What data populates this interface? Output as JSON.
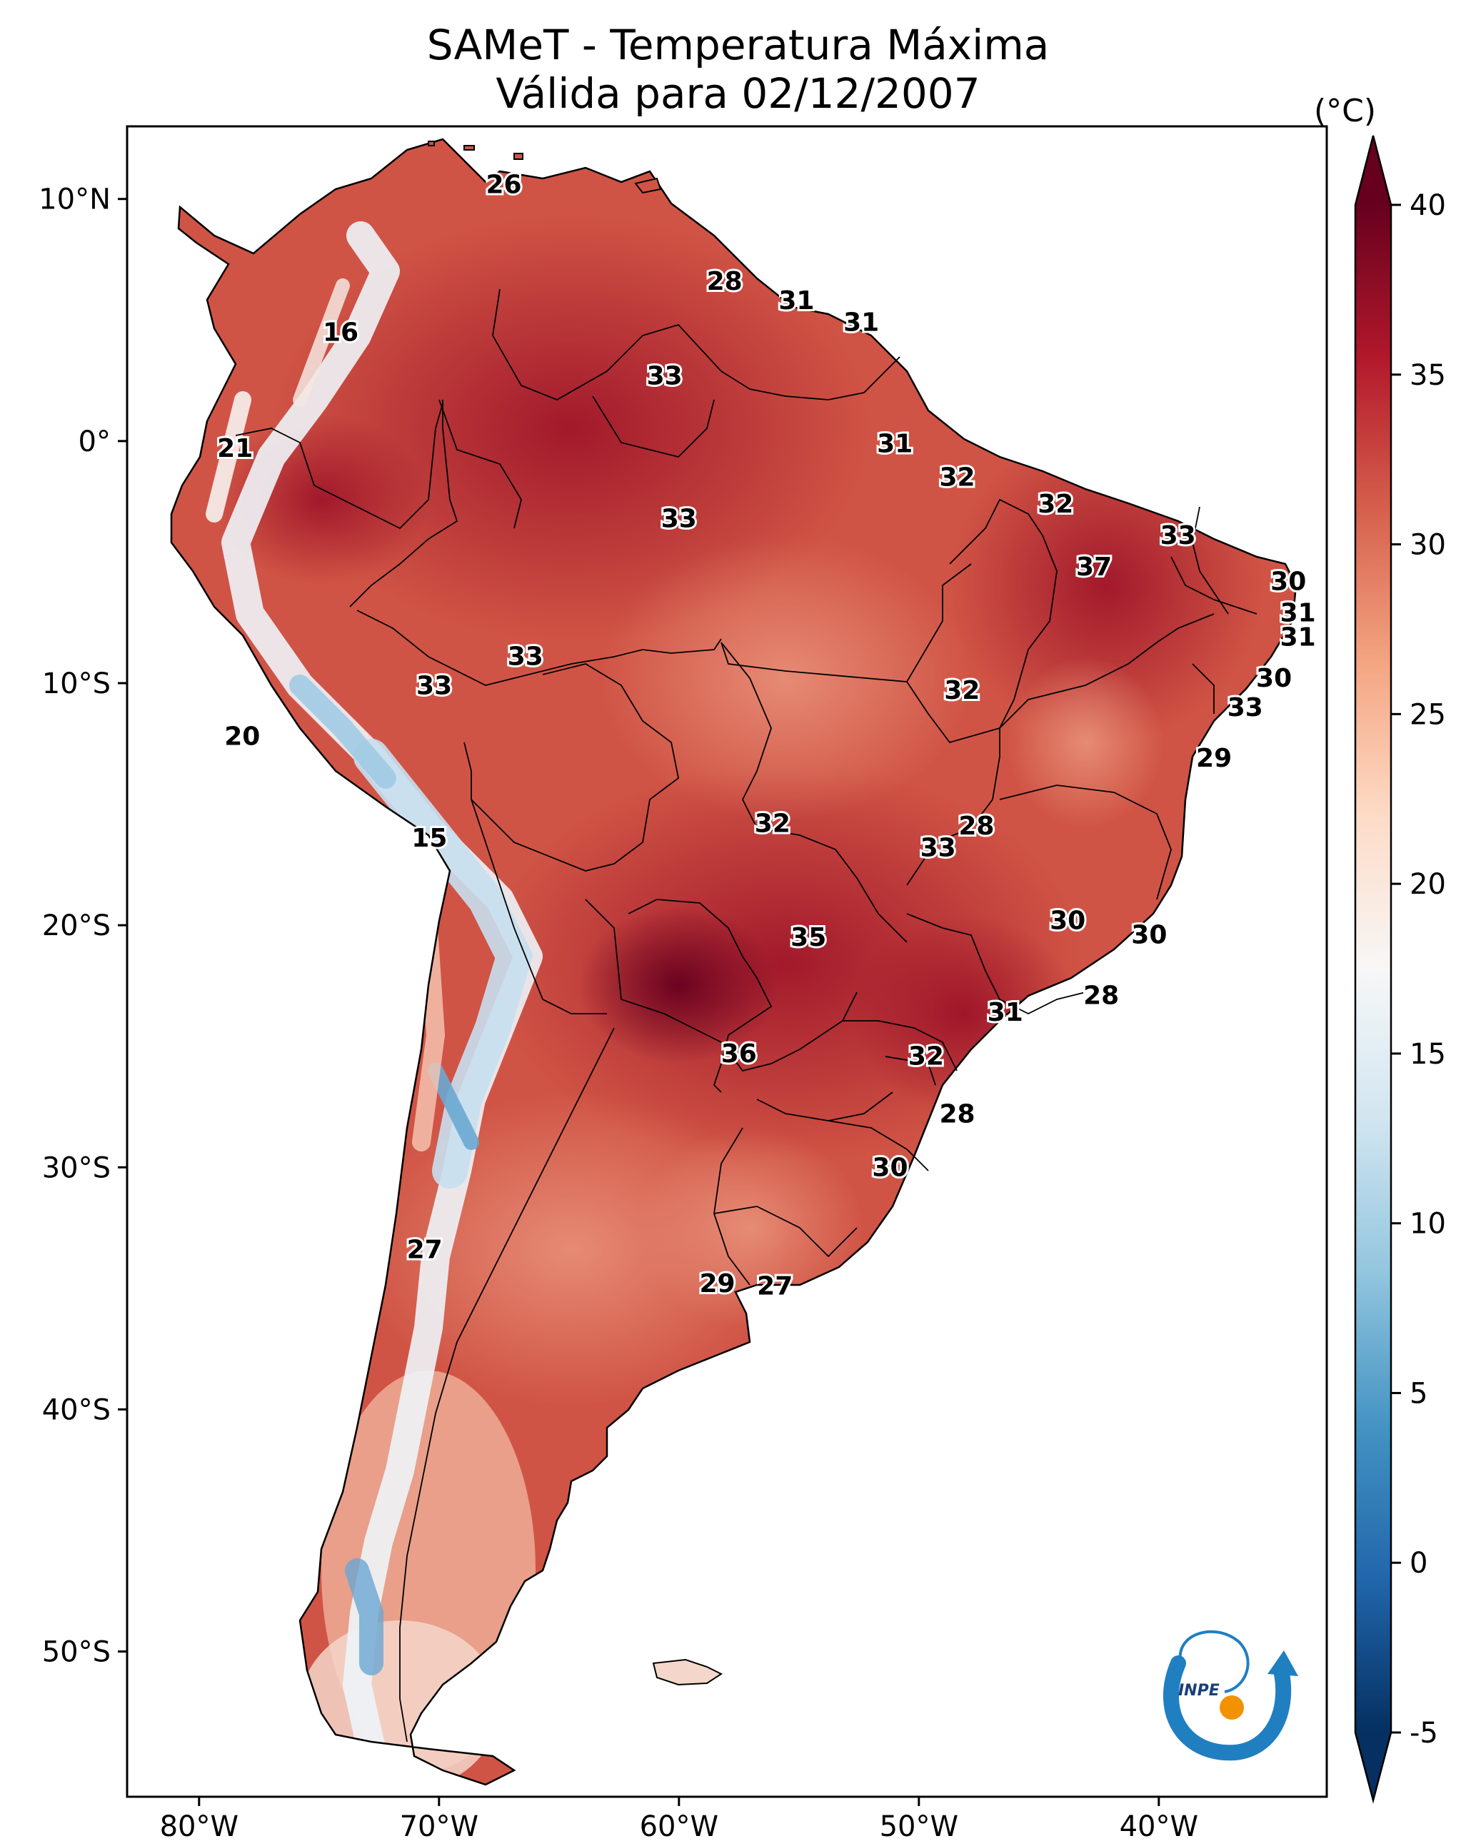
{
  "header": {
    "title_line1": "SAMeT - Temperatura Máxima",
    "title_line2": "Válida para 02/12/2007"
  },
  "colorbar": {
    "unit": "(°C)",
    "min": -5,
    "max": 40,
    "ticks": [
      "40",
      "35",
      "30",
      "25",
      "20",
      "15",
      "10",
      "5",
      "0",
      "-5"
    ],
    "tick_values": [
      40,
      35,
      30,
      25,
      20,
      15,
      10,
      5,
      0,
      -5
    ],
    "colors": [
      "#053061",
      "#2166ac",
      "#4393c3",
      "#92c5de",
      "#d1e5f0",
      "#f7f7f7",
      "#fddbc7",
      "#f4a582",
      "#d6604d",
      "#b2182b",
      "#67001f"
    ]
  },
  "axes": {
    "lon_labels": [
      "80°W",
      "70°W",
      "60°W",
      "50°W",
      "40°W"
    ],
    "lon_values": [
      -80,
      -70,
      -60,
      -50,
      -40
    ],
    "lat_labels": [
      "10°N",
      "0°",
      "10°S",
      "20°S",
      "30°S",
      "40°S",
      "50°S"
    ],
    "lat_values": [
      10,
      0,
      -10,
      -20,
      -30,
      -40,
      -50
    ],
    "lon_range": [
      -83,
      -33
    ],
    "lat_range": [
      -56,
      13
    ]
  },
  "contour_labels": [
    {
      "text": "26",
      "lon": -67.3,
      "lat": 10.6
    },
    {
      "text": "16",
      "lon": -74.1,
      "lat": 4.5
    },
    {
      "text": "28",
      "lon": -58.1,
      "lat": 6.6
    },
    {
      "text": "31",
      "lon": -55.1,
      "lat": 5.8
    },
    {
      "text": "31",
      "lon": -52.4,
      "lat": 4.9
    },
    {
      "text": "33",
      "lon": -60.6,
      "lat": 2.7
    },
    {
      "text": "21",
      "lon": -78.5,
      "lat": -0.3
    },
    {
      "text": "31",
      "lon": -51.0,
      "lat": -0.1
    },
    {
      "text": "32",
      "lon": -48.4,
      "lat": -1.5
    },
    {
      "text": "33",
      "lon": -60.0,
      "lat": -3.2
    },
    {
      "text": "32",
      "lon": -44.3,
      "lat": -2.6
    },
    {
      "text": "33",
      "lon": -39.2,
      "lat": -3.9
    },
    {
      "text": "37",
      "lon": -42.7,
      "lat": -5.2
    },
    {
      "text": "30",
      "lon": -34.6,
      "lat": -5.8
    },
    {
      "text": "31",
      "lon": -34.2,
      "lat": -7.1
    },
    {
      "text": "31",
      "lon": -34.2,
      "lat": -8.1
    },
    {
      "text": "33",
      "lon": -66.4,
      "lat": -8.9
    },
    {
      "text": "33",
      "lon": -70.2,
      "lat": -10.1
    },
    {
      "text": "30",
      "lon": -35.2,
      "lat": -9.8
    },
    {
      "text": "32",
      "lon": -48.2,
      "lat": -10.3
    },
    {
      "text": "33",
      "lon": -36.4,
      "lat": -11.0
    },
    {
      "text": "20",
      "lon": -78.2,
      "lat": -12.2
    },
    {
      "text": "29",
      "lon": -37.7,
      "lat": -13.1
    },
    {
      "text": "28",
      "lon": -47.6,
      "lat": -15.9
    },
    {
      "text": "32",
      "lon": -56.1,
      "lat": -15.8
    },
    {
      "text": "15",
      "lon": -70.4,
      "lat": -16.4
    },
    {
      "text": "33",
      "lon": -49.2,
      "lat": -16.8
    },
    {
      "text": "30",
      "lon": -43.8,
      "lat": -19.8
    },
    {
      "text": "35",
      "lon": -54.6,
      "lat": -20.5
    },
    {
      "text": "30",
      "lon": -40.4,
      "lat": -20.4
    },
    {
      "text": "28",
      "lon": -42.4,
      "lat": -22.9
    },
    {
      "text": "31",
      "lon": -46.4,
      "lat": -23.6
    },
    {
      "text": "36",
      "lon": -57.5,
      "lat": -25.3
    },
    {
      "text": "32",
      "lon": -49.7,
      "lat": -25.4
    },
    {
      "text": "28",
      "lon": -48.4,
      "lat": -27.8
    },
    {
      "text": "30",
      "lon": -51.2,
      "lat": -30.0
    },
    {
      "text": "27",
      "lon": -70.6,
      "lat": -33.4
    },
    {
      "text": "29",
      "lon": -58.4,
      "lat": -34.8
    },
    {
      "text": "27",
      "lon": -56.0,
      "lat": -34.9
    }
  ],
  "logo": {
    "text": "INPE"
  }
}
